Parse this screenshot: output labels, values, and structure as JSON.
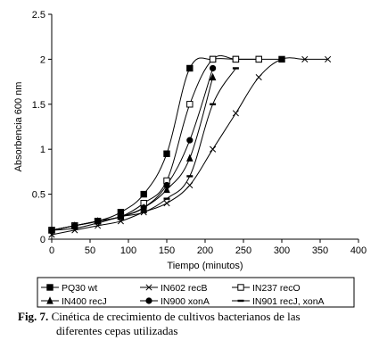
{
  "chart_data": {
    "type": "line",
    "xlabel": "Tiempo (minutos)",
    "ylabel": "Absorbencia 600 nm",
    "xlim": [
      0,
      400
    ],
    "ylim": [
      0,
      2.5
    ],
    "xticks": [
      0,
      50,
      100,
      150,
      200,
      250,
      300,
      350,
      400
    ],
    "yticks": [
      0,
      0.5,
      1,
      1.5,
      2,
      2.5
    ],
    "xtick_labels": [
      "0",
      "50",
      "100",
      "150",
      "200",
      "250",
      "300",
      "350",
      "400"
    ],
    "ytick_labels": [
      "0",
      "0.5",
      "1",
      "1.5",
      "2",
      "2.5"
    ],
    "grid": false,
    "legend_placement": "bottom",
    "series": [
      {
        "name": "PQ30 wt",
        "marker": "square-filled",
        "x": [
          0,
          30,
          60,
          90,
          120,
          150,
          180,
          210,
          240,
          270,
          300
        ],
        "y": [
          0.1,
          0.15,
          0.2,
          0.3,
          0.5,
          0.95,
          1.9,
          2.0,
          2.0,
          2.0,
          2.0
        ]
      },
      {
        "name": "IN602 recB",
        "marker": "x",
        "x": [
          0,
          30,
          60,
          90,
          120,
          150,
          180,
          210,
          240,
          270,
          300,
          330,
          360
        ],
        "y": [
          0.05,
          0.1,
          0.15,
          0.2,
          0.3,
          0.4,
          0.6,
          1.0,
          1.4,
          1.8,
          2.0,
          2.0,
          2.0
        ]
      },
      {
        "name": "IN237 recO",
        "marker": "square-open",
        "x": [
          0,
          30,
          60,
          90,
          120,
          150,
          180,
          210,
          240,
          270
        ],
        "y": [
          0.1,
          0.15,
          0.2,
          0.25,
          0.4,
          0.65,
          1.5,
          2.0,
          2.0,
          2.0
        ]
      },
      {
        "name": "IN400 recJ",
        "marker": "triangle-filled",
        "x": [
          0,
          30,
          60,
          90,
          120,
          150,
          180,
          210
        ],
        "y": [
          0.1,
          0.15,
          0.2,
          0.25,
          0.35,
          0.55,
          0.9,
          1.8
        ]
      },
      {
        "name": "IN900 xonA",
        "marker": "circle-filled",
        "x": [
          0,
          30,
          60,
          90,
          120,
          150,
          180,
          210
        ],
        "y": [
          0.1,
          0.15,
          0.2,
          0.25,
          0.35,
          0.6,
          1.1,
          1.9
        ]
      },
      {
        "name": "IN901 recJ, xonA",
        "marker": "dash",
        "x": [
          0,
          30,
          60,
          90,
          120,
          150,
          180,
          210,
          240
        ],
        "y": [
          0.1,
          0.12,
          0.18,
          0.25,
          0.3,
          0.45,
          0.7,
          1.5,
          1.9
        ]
      }
    ]
  },
  "caption": {
    "label": "Fig. 7.",
    "line1": "Cinética de crecimiento de cultivos bacterianos de las",
    "line2": "diferentes cepas utilizadas"
  }
}
